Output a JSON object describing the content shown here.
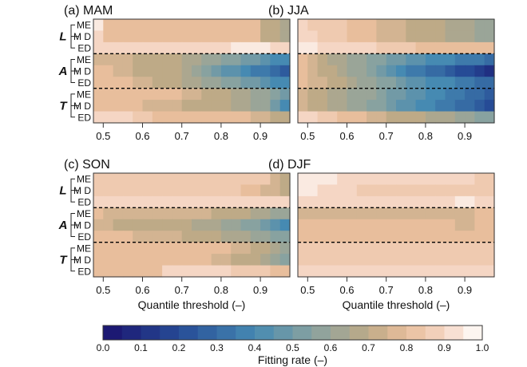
{
  "chart_data": {
    "type": "heatmap",
    "x_ticks": [
      "0.5",
      "0.6",
      "0.7",
      "0.8",
      "0.9"
    ],
    "x_tick_values": [
      0.5,
      0.6,
      0.7,
      0.8,
      0.9
    ],
    "x_range": [
      0.475,
      0.975
    ],
    "xlabel": "Quantile threshold (–)",
    "group_labels": [
      "L",
      "A",
      "T"
    ],
    "row_labels": [
      "ME",
      "M D",
      "ED",
      "ME",
      "M D",
      "ED",
      "ME",
      "M D",
      "ED"
    ],
    "colorbar": {
      "label": "Fitting rate (–)",
      "ticks": [
        "0.0",
        "0.1",
        "0.2",
        "0.3",
        "0.4",
        "0.5",
        "0.6",
        "0.7",
        "0.8",
        "0.9",
        "1.0"
      ],
      "range": [
        0.0,
        1.0
      ],
      "bins": 20
    },
    "panels": [
      {
        "title": "(a) MAM",
        "values": [
          [
            0.95,
            0.8,
            0.8,
            0.8,
            0.8,
            0.8,
            0.8,
            0.8,
            0.8,
            0.8,
            0.8,
            0.8,
            0.8,
            0.8,
            0.8,
            0.8,
            0.8,
            0.7,
            0.7,
            0.65
          ],
          [
            0.9,
            0.8,
            0.8,
            0.8,
            0.8,
            0.8,
            0.8,
            0.8,
            0.8,
            0.8,
            0.8,
            0.8,
            0.8,
            0.8,
            0.8,
            0.8,
            0.8,
            0.7,
            0.7,
            0.65
          ],
          [
            0.9,
            0.9,
            0.9,
            0.9,
            0.9,
            0.9,
            0.9,
            0.9,
            0.9,
            0.9,
            0.9,
            0.9,
            0.9,
            0.9,
            0.95,
            0.95,
            0.95,
            0.95,
            0.9,
            0.9
          ],
          [
            0.75,
            0.75,
            0.75,
            0.75,
            0.7,
            0.7,
            0.7,
            0.7,
            0.7,
            0.65,
            0.65,
            0.6,
            0.6,
            0.55,
            0.55,
            0.5,
            0.5,
            0.45,
            0.4,
            0.4
          ],
          [
            0.8,
            0.8,
            0.75,
            0.75,
            0.7,
            0.7,
            0.7,
            0.7,
            0.7,
            0.65,
            0.6,
            0.55,
            0.5,
            0.45,
            0.45,
            0.4,
            0.35,
            0.35,
            0.3,
            0.25
          ],
          [
            0.8,
            0.8,
            0.8,
            0.8,
            0.75,
            0.75,
            0.7,
            0.7,
            0.7,
            0.65,
            0.65,
            0.6,
            0.6,
            0.55,
            0.55,
            0.5,
            0.5,
            0.45,
            0.4,
            0.4
          ],
          [
            0.8,
            0.8,
            0.8,
            0.8,
            0.8,
            0.8,
            0.8,
            0.8,
            0.8,
            0.75,
            0.75,
            0.7,
            0.7,
            0.7,
            0.65,
            0.65,
            0.6,
            0.6,
            0.55,
            0.5
          ],
          [
            0.8,
            0.8,
            0.8,
            0.8,
            0.8,
            0.75,
            0.75,
            0.75,
            0.75,
            0.7,
            0.7,
            0.7,
            0.7,
            0.7,
            0.65,
            0.65,
            0.6,
            0.6,
            0.5,
            0.4
          ],
          [
            0.9,
            0.9,
            0.9,
            0.9,
            0.85,
            0.85,
            0.8,
            0.8,
            0.8,
            0.8,
            0.8,
            0.8,
            0.8,
            0.8,
            0.8,
            0.8,
            0.75,
            0.75,
            0.7,
            0.7
          ]
        ]
      },
      {
        "title": "(b) JJA",
        "values": [
          [
            0.9,
            0.85,
            0.85,
            0.85,
            0.85,
            0.8,
            0.8,
            0.8,
            0.75,
            0.75,
            0.75,
            0.7,
            0.7,
            0.7,
            0.7,
            0.65,
            0.65,
            0.65,
            0.6,
            0.6
          ],
          [
            0.9,
            0.9,
            0.85,
            0.85,
            0.85,
            0.8,
            0.8,
            0.8,
            0.75,
            0.75,
            0.75,
            0.7,
            0.7,
            0.7,
            0.7,
            0.65,
            0.65,
            0.65,
            0.6,
            0.6
          ],
          [
            0.95,
            0.95,
            0.9,
            0.9,
            0.9,
            0.9,
            0.9,
            0.9,
            0.85,
            0.85,
            0.85,
            0.85,
            0.8,
            0.8,
            0.8,
            0.8,
            0.8,
            0.8,
            0.8,
            0.8
          ],
          [
            0.8,
            0.75,
            0.7,
            0.65,
            0.65,
            0.6,
            0.6,
            0.55,
            0.55,
            0.5,
            0.5,
            0.45,
            0.45,
            0.4,
            0.4,
            0.4,
            0.35,
            0.35,
            0.35,
            0.3
          ],
          [
            0.8,
            0.75,
            0.7,
            0.7,
            0.65,
            0.6,
            0.6,
            0.55,
            0.5,
            0.45,
            0.4,
            0.35,
            0.35,
            0.3,
            0.3,
            0.25,
            0.2,
            0.2,
            0.15,
            0.1
          ],
          [
            0.8,
            0.75,
            0.75,
            0.7,
            0.7,
            0.65,
            0.6,
            0.6,
            0.55,
            0.55,
            0.5,
            0.45,
            0.45,
            0.4,
            0.4,
            0.4,
            0.35,
            0.35,
            0.3,
            0.3
          ],
          [
            0.75,
            0.7,
            0.7,
            0.65,
            0.65,
            0.6,
            0.6,
            0.6,
            0.55,
            0.5,
            0.5,
            0.45,
            0.45,
            0.4,
            0.4,
            0.35,
            0.35,
            0.3,
            0.3,
            0.25
          ],
          [
            0.75,
            0.7,
            0.7,
            0.65,
            0.65,
            0.6,
            0.6,
            0.55,
            0.55,
            0.5,
            0.45,
            0.45,
            0.4,
            0.4,
            0.35,
            0.35,
            0.3,
            0.3,
            0.25,
            0.2
          ],
          [
            0.9,
            0.9,
            0.85,
            0.85,
            0.8,
            0.8,
            0.8,
            0.75,
            0.75,
            0.7,
            0.7,
            0.7,
            0.7,
            0.65,
            0.65,
            0.65,
            0.6,
            0.6,
            0.55,
            0.55
          ]
        ]
      },
      {
        "title": "(c) SON",
        "values": [
          [
            0.85,
            0.85,
            0.85,
            0.85,
            0.85,
            0.85,
            0.85,
            0.85,
            0.85,
            0.85,
            0.85,
            0.85,
            0.85,
            0.85,
            0.85,
            0.85,
            0.85,
            0.85,
            0.75,
            0.7
          ],
          [
            0.85,
            0.85,
            0.85,
            0.85,
            0.85,
            0.85,
            0.85,
            0.85,
            0.85,
            0.85,
            0.85,
            0.85,
            0.85,
            0.85,
            0.85,
            0.8,
            0.8,
            0.75,
            0.75,
            0.7
          ],
          [
            0.9,
            0.9,
            0.9,
            0.9,
            0.9,
            0.9,
            0.9,
            0.9,
            0.9,
            0.9,
            0.9,
            0.9,
            0.9,
            0.9,
            0.9,
            0.9,
            0.9,
            0.9,
            0.9,
            0.9
          ],
          [
            0.8,
            0.75,
            0.75,
            0.75,
            0.75,
            0.75,
            0.75,
            0.75,
            0.75,
            0.75,
            0.75,
            0.75,
            0.7,
            0.7,
            0.7,
            0.7,
            0.65,
            0.65,
            0.6,
            0.6
          ],
          [
            0.75,
            0.75,
            0.7,
            0.7,
            0.7,
            0.7,
            0.7,
            0.7,
            0.7,
            0.7,
            0.65,
            0.65,
            0.65,
            0.6,
            0.6,
            0.55,
            0.55,
            0.5,
            0.45,
            0.4
          ],
          [
            0.8,
            0.8,
            0.8,
            0.8,
            0.75,
            0.75,
            0.75,
            0.75,
            0.75,
            0.7,
            0.7,
            0.7,
            0.7,
            0.65,
            0.65,
            0.65,
            0.6,
            0.6,
            0.55,
            0.55
          ],
          [
            0.8,
            0.8,
            0.8,
            0.8,
            0.8,
            0.8,
            0.8,
            0.8,
            0.8,
            0.8,
            0.8,
            0.8,
            0.8,
            0.8,
            0.75,
            0.75,
            0.7,
            0.7,
            0.65,
            0.6
          ],
          [
            0.8,
            0.8,
            0.8,
            0.8,
            0.8,
            0.8,
            0.8,
            0.8,
            0.8,
            0.8,
            0.8,
            0.8,
            0.75,
            0.75,
            0.7,
            0.7,
            0.7,
            0.65,
            0.6,
            0.55
          ],
          [
            0.8,
            0.8,
            0.8,
            0.8,
            0.8,
            0.8,
            0.8,
            0.9,
            0.9,
            0.9,
            0.9,
            0.9,
            0.9,
            0.9,
            0.85,
            0.85,
            0.85,
            0.85,
            0.8,
            0.8
          ]
        ]
      },
      {
        "title": "(d) DJF",
        "values": [
          [
            0.95,
            0.95,
            0.95,
            0.95,
            0.9,
            0.9,
            0.9,
            0.9,
            0.9,
            0.9,
            0.9,
            0.9,
            0.9,
            0.9,
            0.9,
            0.9,
            0.9,
            0.9,
            0.85,
            0.85
          ],
          [
            0.95,
            0.95,
            0.9,
            0.9,
            0.9,
            0.9,
            0.85,
            0.85,
            0.85,
            0.85,
            0.85,
            0.85,
            0.85,
            0.85,
            0.85,
            0.85,
            0.85,
            0.85,
            0.85,
            0.85
          ],
          [
            0.9,
            0.9,
            0.9,
            0.9,
            0.9,
            0.9,
            0.9,
            0.9,
            0.9,
            0.9,
            0.9,
            0.9,
            0.9,
            0.9,
            0.9,
            0.9,
            0.95,
            0.95,
            0.9,
            0.9
          ],
          [
            0.75,
            0.75,
            0.75,
            0.75,
            0.75,
            0.75,
            0.75,
            0.75,
            0.75,
            0.75,
            0.75,
            0.75,
            0.75,
            0.75,
            0.75,
            0.75,
            0.75,
            0.75,
            0.8,
            0.8
          ],
          [
            0.8,
            0.8,
            0.8,
            0.8,
            0.8,
            0.8,
            0.8,
            0.8,
            0.8,
            0.8,
            0.8,
            0.8,
            0.8,
            0.8,
            0.8,
            0.8,
            0.75,
            0.75,
            0.8,
            0.8
          ],
          [
            0.8,
            0.8,
            0.8,
            0.8,
            0.8,
            0.8,
            0.8,
            0.8,
            0.8,
            0.8,
            0.8,
            0.8,
            0.8,
            0.8,
            0.8,
            0.8,
            0.8,
            0.8,
            0.8,
            0.8
          ],
          [
            0.85,
            0.85,
            0.85,
            0.85,
            0.85,
            0.85,
            0.85,
            0.85,
            0.85,
            0.85,
            0.85,
            0.85,
            0.85,
            0.85,
            0.85,
            0.85,
            0.85,
            0.85,
            0.85,
            0.85
          ],
          [
            0.85,
            0.85,
            0.85,
            0.85,
            0.85,
            0.85,
            0.85,
            0.85,
            0.85,
            0.85,
            0.85,
            0.85,
            0.85,
            0.85,
            0.85,
            0.85,
            0.85,
            0.85,
            0.85,
            0.85
          ],
          [
            0.9,
            0.9,
            0.9,
            0.9,
            0.9,
            0.9,
            0.9,
            0.9,
            0.9,
            0.9,
            0.9,
            0.9,
            0.9,
            0.9,
            0.9,
            0.9,
            0.9,
            0.9,
            0.9,
            0.9
          ]
        ]
      }
    ]
  }
}
